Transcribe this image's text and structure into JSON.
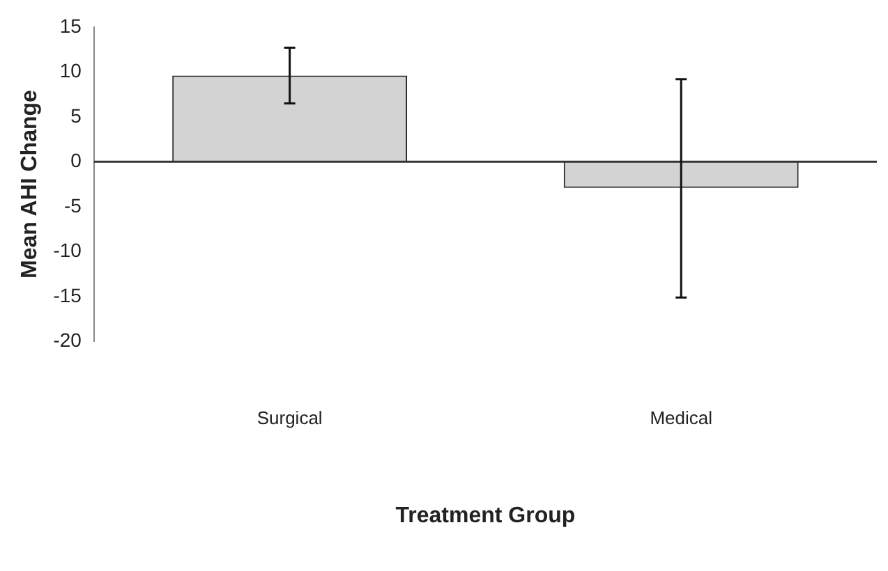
{
  "chart_data": {
    "type": "bar",
    "xlabel": "Treatment Group",
    "ylabel": "Mean AHI Change",
    "categories": [
      "Surgical",
      "Medical"
    ],
    "values": [
      9.6,
      -2.9
    ],
    "errors": [
      [
        6.5,
        12.7
      ],
      [
        -15.1,
        9.2
      ]
    ],
    "color": "#d3d3d3",
    "ref_lines": [
      {
        "axis": "y",
        "value": 0,
        "color": "#333333"
      }
    ],
    "ylim": [
      -20,
      15
    ],
    "yticks": [
      -20,
      -15,
      -10,
      -5,
      0,
      5,
      10,
      15
    ],
    "grid": false,
    "legend": false
  }
}
